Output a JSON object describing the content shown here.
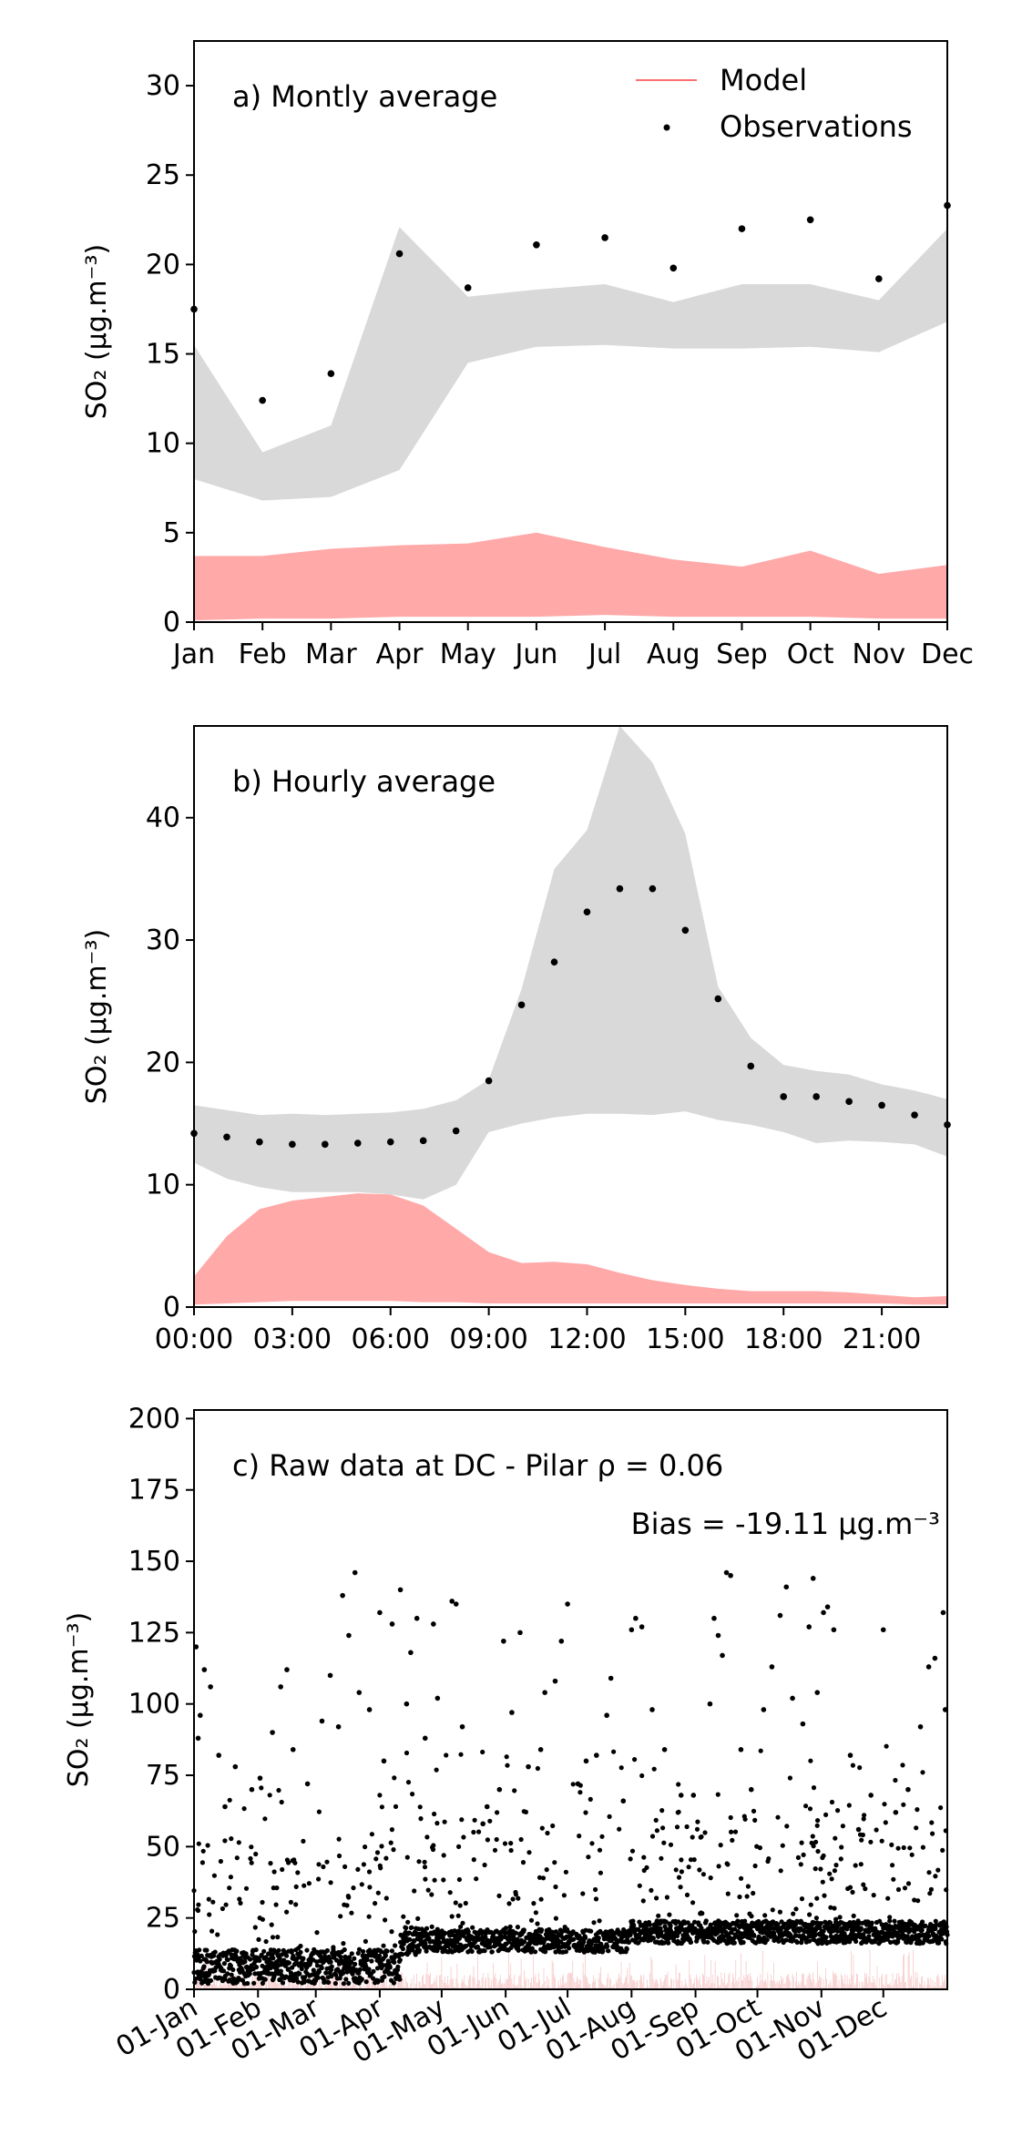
{
  "chart_data": [
    {
      "type": "area",
      "panel_label": "a) Montly average",
      "ylabel": "SO₂ (μg.m⁻³)",
      "categories": [
        "Jan",
        "Feb",
        "Mar",
        "Apr",
        "May",
        "Jun",
        "Jul",
        "Aug",
        "Sep",
        "Oct",
        "Nov",
        "Dec"
      ],
      "ylim": [
        0,
        32.5
      ],
      "yticks": [
        "0",
        "5",
        "10",
        "15",
        "20",
        "25",
        "30"
      ],
      "legend": {
        "position": "top-right",
        "entries": [
          "Model",
          "Observations"
        ]
      },
      "colors": {
        "model": "#ff8c8c",
        "observation_band": "#d9d9d9",
        "points": "#000000"
      },
      "observation_band": {
        "lower": [
          8.0,
          6.8,
          7.0,
          8.5,
          14.5,
          15.4,
          15.5,
          15.3,
          15.3,
          15.4,
          15.1,
          16.8
        ],
        "upper": [
          15.5,
          9.5,
          11.0,
          22.1,
          18.2,
          18.6,
          18.9,
          17.9,
          18.9,
          18.9,
          18.0,
          22.0
        ]
      },
      "model_band": {
        "lower": [
          0.1,
          0.2,
          0.2,
          0.3,
          0.3,
          0.3,
          0.4,
          0.3,
          0.3,
          0.3,
          0.2,
          0.2
        ],
        "upper": [
          3.7,
          3.7,
          4.1,
          4.3,
          4.4,
          5.0,
          4.2,
          3.5,
          3.1,
          4.0,
          2.7,
          3.2
        ]
      },
      "observations": [
        17.5,
        12.4,
        13.9,
        20.6,
        18.7,
        21.1,
        21.5,
        19.8,
        22.0,
        22.5,
        19.2,
        23.3
      ]
    },
    {
      "type": "area",
      "panel_label": "b) Hourly average",
      "ylabel": "SO₂ (μg.m⁻³)",
      "x": [
        0,
        1,
        2,
        3,
        4,
        5,
        6,
        7,
        8,
        9,
        10,
        11,
        12,
        13,
        14,
        15,
        16,
        17,
        18,
        19,
        20,
        21,
        22,
        23
      ],
      "xticks": [
        "00:00",
        "03:00",
        "06:00",
        "09:00",
        "12:00",
        "15:00",
        "18:00",
        "21:00"
      ],
      "ylim": [
        0,
        47.5
      ],
      "yticks": [
        "0",
        "10",
        "20",
        "30",
        "40"
      ],
      "observation_band": {
        "lower": [
          11.8,
          10.5,
          9.8,
          9.4,
          9.4,
          9.4,
          9.2,
          8.8,
          10.0,
          14.3,
          15.0,
          15.5,
          15.8,
          15.8,
          15.7,
          16.0,
          15.3,
          14.9,
          14.3,
          13.4,
          13.6,
          13.5,
          13.3,
          12.3
        ],
        "upper": [
          16.5,
          16.1,
          15.7,
          15.8,
          15.7,
          15.8,
          15.9,
          16.2,
          16.9,
          18.6,
          26.0,
          35.8,
          39.0,
          47.5,
          44.5,
          38.7,
          26.2,
          22.0,
          19.8,
          19.3,
          19.0,
          18.2,
          17.7,
          17.0
        ]
      },
      "model_band": {
        "lower": [
          0.2,
          0.3,
          0.4,
          0.5,
          0.5,
          0.5,
          0.5,
          0.4,
          0.4,
          0.3,
          0.3,
          0.3,
          0.3,
          0.3,
          0.3,
          0.3,
          0.3,
          0.3,
          0.3,
          0.3,
          0.3,
          0.3,
          0.2,
          0.2
        ],
        "upper": [
          2.5,
          5.8,
          8.0,
          8.7,
          9.0,
          9.3,
          9.2,
          8.3,
          6.4,
          4.5,
          3.6,
          3.7,
          3.5,
          2.8,
          2.2,
          1.8,
          1.5,
          1.3,
          1.3,
          1.3,
          1.2,
          1.0,
          0.8,
          0.9
        ]
      },
      "observations": [
        14.2,
        13.9,
        13.5,
        13.3,
        13.3,
        13.4,
        13.5,
        13.6,
        14.4,
        18.5,
        24.7,
        28.2,
        32.3,
        34.2,
        34.2,
        30.8,
        25.2,
        19.7,
        17.2,
        17.2,
        16.8,
        16.5,
        15.7,
        14.9
      ]
    },
    {
      "type": "scatter",
      "panel_label": "c) Raw data at DC - Pilar ρ = 0.06",
      "bias_label": "Bias = -19.11 μg.m⁻³",
      "ylabel": "SO₂ (μg.m⁻³)",
      "xticks": [
        "01-Jan",
        "01-Feb",
        "01-Mar",
        "01-Apr",
        "01-May",
        "01-Jun",
        "01-Jul",
        "01-Aug",
        "01-Sep",
        "01-Oct",
        "01-Nov",
        "01-Dec"
      ],
      "xlim_days": [
        0,
        365
      ],
      "ylim": [
        0,
        203
      ],
      "yticks": [
        "0",
        "25",
        "50",
        "75",
        "100",
        "125",
        "150",
        "175",
        "200"
      ],
      "baseline_segments": [
        {
          "day_start": 0,
          "day_end": 100,
          "level": 8,
          "spread": 6
        },
        {
          "day_start": 100,
          "day_end": 116,
          "level": 17,
          "spread": 5
        },
        {
          "day_start": 116,
          "day_end": 210,
          "level": 17,
          "spread": 4
        },
        {
          "day_start": 210,
          "day_end": 365,
          "level": 20,
          "spread": 4
        }
      ],
      "peak_points": [
        [
          1,
          120
        ],
        [
          2,
          88
        ],
        [
          3,
          96
        ],
        [
          5,
          112
        ],
        [
          8,
          106
        ],
        [
          12,
          82
        ],
        [
          15,
          64
        ],
        [
          20,
          78
        ],
        [
          28,
          70
        ],
        [
          32,
          74
        ],
        [
          38,
          90
        ],
        [
          42,
          106
        ],
        [
          45,
          112
        ],
        [
          48,
          84
        ],
        [
          55,
          72
        ],
        [
          62,
          94
        ],
        [
          66,
          110
        ],
        [
          70,
          92
        ],
        [
          72,
          138
        ],
        [
          75,
          124
        ],
        [
          78,
          146
        ],
        [
          80,
          104
        ],
        [
          85,
          98
        ],
        [
          90,
          132
        ],
        [
          92,
          80
        ],
        [
          96,
          128
        ],
        [
          100,
          140
        ],
        [
          103,
          100
        ],
        [
          105,
          118
        ],
        [
          108,
          130
        ],
        [
          112,
          88
        ],
        [
          116,
          128
        ],
        [
          118,
          102
        ],
        [
          125,
          136
        ],
        [
          127,
          135
        ],
        [
          130,
          92
        ],
        [
          140,
          58
        ],
        [
          142,
          64
        ],
        [
          148,
          70
        ],
        [
          150,
          122
        ],
        [
          154,
          97
        ],
        [
          158,
          125
        ],
        [
          162,
          78
        ],
        [
          168,
          84
        ],
        [
          170,
          104
        ],
        [
          175,
          108
        ],
        [
          178,
          122
        ],
        [
          181,
          135
        ],
        [
          186,
          72
        ],
        [
          190,
          80
        ],
        [
          195,
          82
        ],
        [
          200,
          96
        ],
        [
          202,
          109
        ],
        [
          208,
          66
        ],
        [
          212,
          126
        ],
        [
          214,
          130
        ],
        [
          217,
          127
        ],
        [
          222,
          98
        ],
        [
          228,
          84
        ],
        [
          236,
          68
        ],
        [
          242,
          68
        ],
        [
          250,
          100
        ],
        [
          252,
          130
        ],
        [
          254,
          124
        ],
        [
          256,
          117
        ],
        [
          258,
          146
        ],
        [
          260,
          145
        ],
        [
          265,
          84
        ],
        [
          270,
          70
        ],
        [
          276,
          98
        ],
        [
          280,
          113
        ],
        [
          284,
          131
        ],
        [
          287,
          141
        ],
        [
          290,
          102
        ],
        [
          295,
          93
        ],
        [
          298,
          127
        ],
        [
          300,
          144
        ],
        [
          302,
          104
        ],
        [
          305,
          132
        ],
        [
          307,
          134
        ],
        [
          310,
          126
        ],
        [
          318,
          82
        ],
        [
          322,
          56
        ],
        [
          328,
          68
        ],
        [
          334,
          126
        ],
        [
          340,
          62
        ],
        [
          346,
          70
        ],
        [
          352,
          92
        ],
        [
          356,
          113
        ],
        [
          359,
          116
        ],
        [
          363,
          132
        ],
        [
          364,
          98
        ]
      ],
      "colors": {
        "points": "#000000",
        "model": "#e03030"
      }
    }
  ]
}
